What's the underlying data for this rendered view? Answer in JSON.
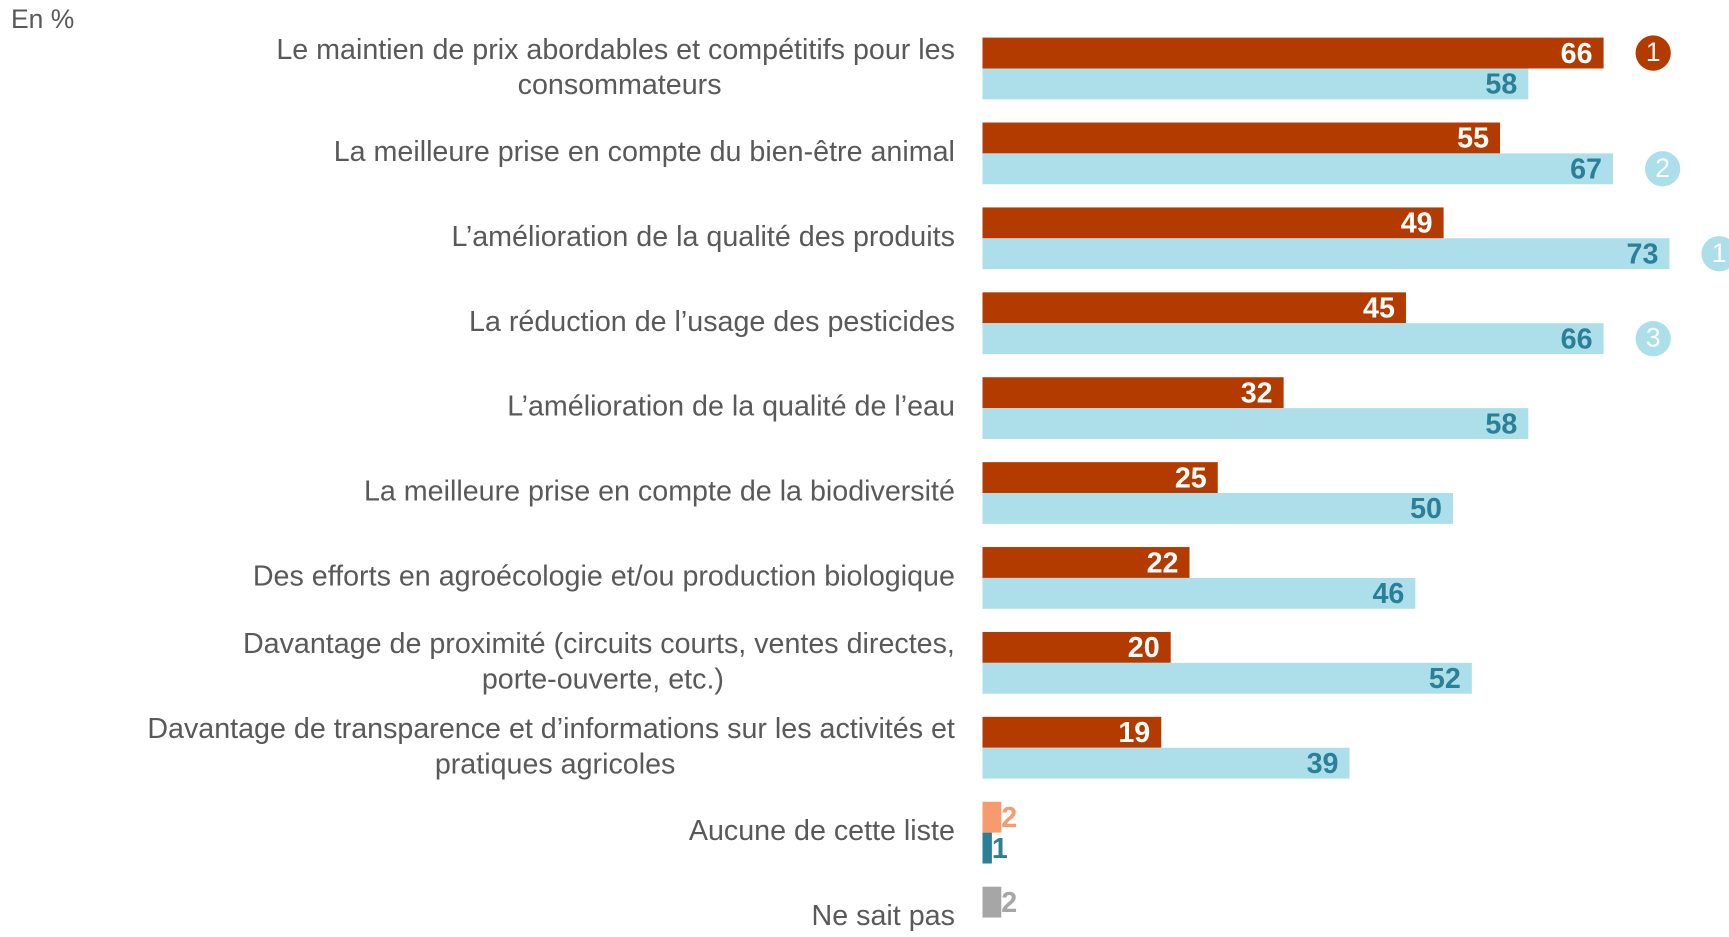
{
  "chart_data": {
    "type": "bar",
    "orientation": "horizontal",
    "title": "En %",
    "categories": [
      "Le maintien de prix abordables et compétitifs pour les consommateurs",
      "La meilleure prise en compte du bien-être animal",
      "L’amélioration de la qualité des produits",
      "La réduction de l’usage des pesticides",
      "L’amélioration de la qualité de l’eau",
      "La meilleure prise en compte de la biodiversité",
      "Des efforts en agroécologie et/ou production biologique",
      "Davantage de proximité (circuits courts, ventes directes, porte-ouverte, etc.)",
      "Davantage de transparence et d’informations sur les activités et pratiques agricoles",
      "Aucune de cette liste",
      "Ne sait pas"
    ],
    "xlim": [
      0,
      73
    ],
    "series": [
      {
        "color": "#b33b00",
        "label_color": "#ffffff",
        "values": [
          66,
          55,
          49,
          45,
          32,
          25,
          22,
          20,
          19,
          2,
          2
        ],
        "point_colors": [
          "#b33b00",
          "#b33b00",
          "#b33b00",
          "#b33b00",
          "#b33b00",
          "#b33b00",
          "#b33b00",
          "#b33b00",
          "#b33b00",
          "#f79a6e",
          "#a6a6a6"
        ],
        "ranks": [
          1,
          null,
          null,
          null,
          null,
          null,
          null,
          null,
          null,
          null,
          null
        ]
      },
      {
        "color": "#acdfea",
        "label_color": "#2b7f97",
        "values": [
          58,
          67,
          73,
          66,
          58,
          50,
          46,
          52,
          39,
          1,
          null
        ],
        "point_colors": [
          "#acdfea",
          "#acdfea",
          "#acdfea",
          "#acdfea",
          "#acdfea",
          "#acdfea",
          "#acdfea",
          "#acdfea",
          "#acdfea",
          "#2b7f97",
          null
        ],
        "ranks": [
          null,
          2,
          1,
          3,
          null,
          null,
          null,
          null,
          null,
          null,
          null
        ]
      }
    ]
  }
}
